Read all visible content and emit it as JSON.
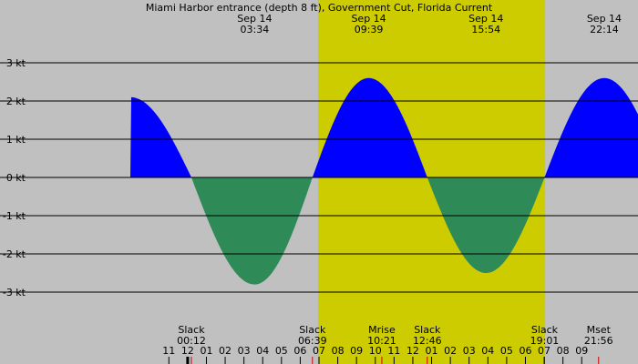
{
  "chart_data": {
    "type": "area",
    "title": "Miami Harbor entrance (depth 8 ft), Government Cut, Florida Current",
    "x_unit": "hours",
    "x_range": [
      10.5,
      23.0
    ],
    "y_range": [
      -3.9,
      4.65
    ],
    "y_ticks": [
      {
        "value": 3,
        "label": "3 kt"
      },
      {
        "value": 2,
        "label": "2 kt"
      },
      {
        "value": 1,
        "label": "1 kt"
      },
      {
        "value": 0,
        "label": "0 kt"
      },
      {
        "value": -1,
        "label": "-1 kt"
      },
      {
        "value": -2,
        "label": "-2 kt"
      },
      {
        "value": -3,
        "label": "-3 kt"
      }
    ],
    "daylight": {
      "start": 6.95,
      "end": 19.05
    },
    "events": [
      {
        "x": 0.2,
        "y": 0,
        "type": "slack"
      },
      {
        "x": 3.57,
        "y": -2.8,
        "type": "max_ebb"
      },
      {
        "x": 6.65,
        "y": 0,
        "type": "slack"
      },
      {
        "x": 9.65,
        "y": 2.6,
        "type": "max_flood"
      },
      {
        "x": 12.77,
        "y": 0,
        "type": "slack"
      },
      {
        "x": 15.9,
        "y": -2.5,
        "type": "max_ebb"
      },
      {
        "x": 19.02,
        "y": 0,
        "type": "slack"
      },
      {
        "x": 22.2,
        "y": 2.6,
        "type": "max_flood"
      }
    ],
    "top_labels": [
      {
        "x": 3.57,
        "date": "Sep 14",
        "time": "03:34"
      },
      {
        "x": 9.65,
        "date": "Sep 14",
        "time": "09:39"
      },
      {
        "x": 15.9,
        "date": "Sep 14",
        "time": "15:54"
      },
      {
        "x": 22.2,
        "date": "Sep 14",
        "time": "22:14"
      }
    ],
    "bottom_labels": [
      {
        "x": 0.2,
        "name": "Slack",
        "time": "00:12"
      },
      {
        "x": 6.65,
        "name": "Slack",
        "time": "06:39"
      },
      {
        "x": 10.35,
        "name": "Mrise",
        "time": "10:21"
      },
      {
        "x": 12.77,
        "name": "Slack",
        "time": "12:46"
      },
      {
        "x": 19.02,
        "name": "Slack",
        "time": "19:01"
      },
      {
        "x": 21.9,
        "name": "Mset",
        "time": "21:56"
      }
    ],
    "hour_labels": [
      "11",
      "12",
      "01",
      "02",
      "03",
      "04",
      "05",
      "06",
      "07",
      "08",
      "09",
      "10",
      "11",
      "12",
      "01",
      "02",
      "03",
      "04",
      "05",
      "06",
      "07",
      "08",
      "09"
    ],
    "colors": {
      "flood": "#0000ff",
      "ebb": "#2e8b57",
      "day": "#cccc00",
      "night": "#c0c0c0"
    }
  }
}
